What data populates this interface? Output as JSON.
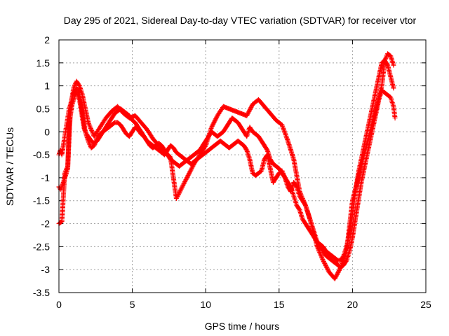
{
  "chart_data": {
    "type": "scatter",
    "title": "Day 295 of 2021, Sidereal Day-to-day VTEC variation (SDTVAR) for receiver vtor",
    "xlabel": "GPS time / hours",
    "ylabel": "SDTVAR / TECUs",
    "xlim": [
      0,
      25
    ],
    "ylim": [
      -3.5,
      2
    ],
    "xticks": [
      0,
      5,
      10,
      15,
      20,
      25
    ],
    "xtick_labels": [
      "0",
      "5",
      "10",
      "15",
      "20",
      "25"
    ],
    "yticks": [
      -3.5,
      -3,
      -2.5,
      -2,
      -1.5,
      -1,
      -0.5,
      0,
      0.5,
      1,
      1.5,
      2
    ],
    "ytick_labels": [
      "-3.5",
      "-3",
      "-2.5",
      "-2",
      "-1.5",
      "-1",
      "-0.5",
      "0",
      "0.5",
      "1",
      "1.5",
      "2"
    ],
    "grid": true,
    "marker": "plus",
    "color": "#ff0000",
    "series": [
      {
        "x": [
          0.0,
          0.1,
          0.2,
          0.3,
          0.4,
          0.5,
          0.6,
          0.7,
          0.8,
          0.9,
          1.0,
          1.1,
          1.2,
          1.3,
          1.4,
          1.5,
          1.6,
          1.7,
          1.8,
          1.9,
          2.0,
          2.2,
          2.4,
          2.6,
          2.8,
          3.0,
          3.2,
          3.4,
          3.6,
          3.8,
          4.0,
          4.2,
          4.4,
          4.6,
          4.8,
          5.0,
          5.2,
          5.4,
          5.6,
          5.8,
          6.0,
          6.2,
          6.4,
          6.6,
          6.8,
          7.0,
          7.2,
          7.4,
          7.6,
          7.8,
          8.0,
          8.2,
          8.4,
          8.6,
          8.8,
          9.0,
          9.2,
          9.4,
          9.6,
          9.8,
          10.0,
          10.2,
          10.4,
          10.6,
          10.8,
          11.0,
          11.2,
          11.4,
          11.6,
          11.8,
          12.0,
          12.2,
          12.4,
          12.6,
          12.8,
          13.0,
          13.2,
          13.4,
          13.6,
          13.8,
          14.0,
          14.2,
          14.4,
          14.6,
          14.8,
          15.0,
          15.2,
          15.4,
          15.6,
          15.8,
          16.0,
          16.2,
          16.4,
          16.6,
          16.8,
          17.0,
          17.2,
          17.4,
          17.6,
          17.8,
          18.0,
          18.2,
          18.4,
          18.6,
          18.8,
          19.0,
          19.2,
          19.4,
          19.6,
          19.8,
          20.0,
          20.2,
          20.4,
          20.6,
          20.8,
          21.0,
          21.2,
          21.4,
          21.6,
          21.8,
          22.0,
          22.2,
          22.4,
          22.6,
          22.8,
          22.9
        ],
        "y": [
          -0.5,
          -0.4,
          -0.5,
          -0.3,
          -0.1,
          0.1,
          0.3,
          0.5,
          0.6,
          0.75,
          0.85,
          0.9,
          0.95,
          0.9,
          0.8,
          0.6,
          0.4,
          0.2,
          0.0,
          -0.1,
          -0.2,
          -0.35,
          -0.3,
          -0.15,
          -0.05,
          0.0,
          0.1,
          0.2,
          0.3,
          0.4,
          0.45,
          0.5,
          0.45,
          0.4,
          0.35,
          0.25,
          0.2,
          0.1,
          0.0,
          -0.1,
          -0.2,
          -0.25,
          -0.3,
          -0.35,
          -0.4,
          -0.45,
          -0.5,
          -0.4,
          -0.3,
          -0.35,
          -0.45,
          -0.5,
          -0.55,
          -0.6,
          -0.65,
          -0.7,
          -0.65,
          -0.6,
          -0.55,
          -0.5,
          -0.45,
          -0.4,
          -0.35,
          -0.3,
          -0.25,
          -0.2,
          -0.25,
          -0.3,
          -0.35,
          -0.3,
          -0.25,
          -0.2,
          -0.25,
          -0.3,
          -0.4,
          -0.6,
          -0.9,
          -0.95,
          -0.9,
          -0.85,
          -0.6,
          -0.5,
          -0.8,
          -1.1,
          -1.0,
          -0.9,
          -0.85,
          -1.0,
          -1.2,
          -1.3,
          -1.1,
          -1.2,
          -1.4,
          -1.5,
          -1.6,
          -1.8,
          -2.0,
          -2.2,
          -2.4,
          -2.5,
          -2.6,
          -2.7,
          -2.75,
          -2.8,
          -2.85,
          -2.9,
          -2.95,
          -2.9,
          -2.8,
          -2.6,
          -2.3,
          -1.9,
          -1.5,
          -1.1,
          -0.8,
          -0.5,
          -0.2,
          0.1,
          0.4,
          0.7,
          0.9,
          0.85,
          0.8,
          0.75,
          0.55,
          0.3
        ]
      },
      {
        "x": [
          0.0,
          0.1,
          0.2,
          0.3,
          0.4,
          0.5,
          0.6,
          0.7,
          0.8,
          0.9,
          1.0,
          1.1,
          1.2,
          1.3,
          1.4,
          1.5,
          1.6,
          1.7,
          1.8,
          1.9,
          2.0,
          2.2,
          2.4,
          2.6,
          2.8,
          3.0,
          3.2,
          3.4,
          3.6,
          3.8,
          4.0,
          4.2,
          4.4,
          4.6,
          4.8,
          5.0,
          5.2,
          5.4,
          5.6,
          5.8,
          6.0,
          6.2,
          6.4,
          6.6,
          6.8,
          7.0,
          7.2,
          7.4,
          7.6,
          7.8,
          8.0,
          8.2,
          8.4,
          8.6,
          8.8,
          9.0,
          9.2,
          9.4,
          9.6,
          9.8,
          10.0,
          10.2,
          10.4,
          10.6,
          10.8,
          11.0,
          11.2,
          11.4,
          11.6,
          11.8,
          12.0,
          12.2,
          12.4,
          12.6,
          12.8,
          13.0,
          13.2,
          13.4,
          13.6,
          13.8,
          14.0,
          14.2,
          14.4,
          14.6,
          14.8,
          15.0,
          15.2,
          15.4,
          15.6,
          15.8,
          16.0,
          16.2,
          16.4,
          16.6,
          16.8,
          17.0,
          17.2,
          17.4,
          17.6,
          17.8,
          18.0,
          18.2,
          18.4,
          18.6,
          18.8,
          19.0,
          19.2,
          19.4,
          19.6,
          19.8,
          20.0,
          20.2,
          20.4,
          20.6,
          20.8,
          21.0,
          21.2,
          21.4,
          21.6,
          21.8,
          22.0,
          22.2,
          22.4,
          22.6,
          22.8
        ],
        "y": [
          -1.2,
          -1.25,
          -1.2,
          -1.1,
          -1.0,
          -0.9,
          -0.8,
          0.2,
          0.4,
          0.6,
          0.7,
          0.8,
          0.85,
          0.8,
          0.7,
          0.5,
          0.3,
          0.1,
          0.0,
          -0.05,
          -0.1,
          -0.2,
          -0.25,
          -0.2,
          -0.1,
          0.0,
          0.05,
          0.1,
          0.15,
          0.2,
          0.2,
          0.15,
          0.05,
          -0.05,
          -0.1,
          0.0,
          0.1,
          0.05,
          -0.05,
          -0.1,
          -0.2,
          -0.3,
          -0.35,
          -0.3,
          -0.25,
          -0.3,
          -0.4,
          -0.5,
          -0.6,
          -0.65,
          -0.7,
          -0.75,
          -0.7,
          -0.65,
          -0.6,
          -0.55,
          -0.5,
          -0.45,
          -0.4,
          -0.3,
          -0.2,
          -0.1,
          0.0,
          -0.05,
          -0.1,
          -0.05,
          0.0,
          0.1,
          0.2,
          0.3,
          0.25,
          0.2,
          0.1,
          0.0,
          -0.1,
          0.1,
          0.0,
          -0.05,
          -0.1,
          -0.2,
          -0.3,
          -0.4,
          -0.6,
          -0.7,
          -0.75,
          -0.8,
          -0.9,
          -1.0,
          -1.1,
          -1.2,
          -1.4,
          -1.6,
          -1.7,
          -1.9,
          -2.0,
          -2.1,
          -2.2,
          -2.3,
          -2.4,
          -2.45,
          -2.5,
          -2.6,
          -2.65,
          -2.7,
          -2.75,
          -2.8,
          -2.8,
          -2.7,
          -2.5,
          -2.2,
          -1.8,
          -1.3,
          -0.9,
          -0.6,
          -0.3,
          0.0,
          0.3,
          0.6,
          0.9,
          1.2,
          1.5,
          1.55,
          1.45,
          1.2,
          0.95
        ]
      },
      {
        "x": [
          0.0,
          0.2,
          0.4,
          0.6,
          0.8,
          1.0,
          1.2,
          1.4,
          1.6,
          1.8,
          2.0,
          2.4,
          2.8,
          3.2,
          3.6,
          4.0,
          4.4,
          4.8,
          5.2,
          5.6,
          6.0,
          6.4,
          6.8,
          7.2,
          7.6,
          8.0,
          8.4,
          8.8,
          9.2,
          9.6,
          10.0,
          10.4,
          10.8,
          11.2,
          11.6,
          12.0,
          12.4,
          12.8,
          13.2,
          13.6,
          14.0,
          14.4,
          14.8,
          15.2,
          15.6,
          16.0,
          16.4,
          16.8,
          17.2,
          17.6,
          18.0,
          18.4,
          18.8,
          19.2,
          19.6,
          20.0,
          20.4,
          20.8,
          21.2,
          21.6,
          22.0,
          22.2,
          22.4,
          22.6,
          22.8
        ],
        "y": [
          -2.0,
          -1.95,
          -0.9,
          -0.75,
          0.55,
          0.95,
          1.1,
          1.0,
          0.8,
          0.5,
          0.2,
          -0.1,
          0.1,
          0.3,
          0.45,
          0.55,
          0.4,
          0.3,
          0.35,
          0.2,
          0.05,
          -0.15,
          -0.3,
          -0.45,
          -0.55,
          -1.45,
          -1.2,
          -0.95,
          -0.7,
          -0.5,
          -0.3,
          0.1,
          0.35,
          0.55,
          0.5,
          0.45,
          0.4,
          0.35,
          0.6,
          0.7,
          0.55,
          0.4,
          0.25,
          0.15,
          -0.2,
          -0.6,
          -1.3,
          -1.6,
          -2.0,
          -2.5,
          -2.8,
          -3.05,
          -3.2,
          -2.95,
          -2.6,
          -1.5,
          -1.0,
          -0.5,
          0.0,
          0.5,
          1.0,
          1.55,
          1.7,
          1.65,
          1.45
        ]
      }
    ]
  }
}
